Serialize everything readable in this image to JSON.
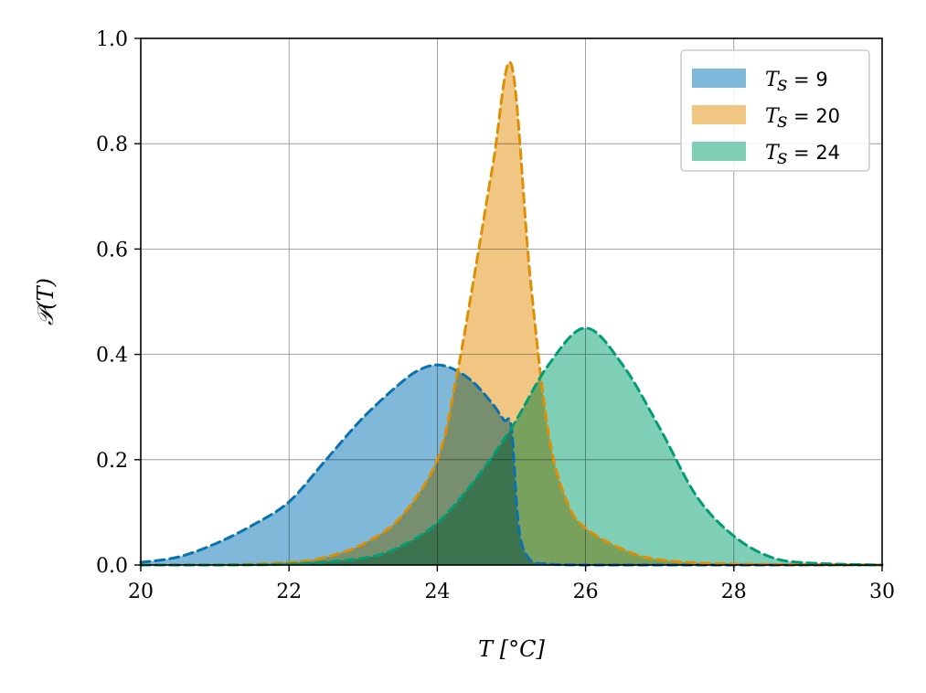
{
  "chart_data": {
    "type": "area",
    "xlabel": "T [°C]",
    "ylabel": "𝒫(T)",
    "xlim": [
      20,
      30
    ],
    "ylim": [
      0,
      1.0
    ],
    "xticks": [
      "20",
      "22",
      "24",
      "26",
      "28",
      "30"
    ],
    "yticks": [
      "0.0",
      "0.2",
      "0.4",
      "0.6",
      "0.8",
      "1.0"
    ],
    "grid": true,
    "legend_position": "top-right",
    "series": [
      {
        "name": "T_s = 9",
        "legend_symbol": "T",
        "legend_sub": "s",
        "legend_value": " = 9",
        "fill_color": "#7fb8d9",
        "line_color": "#0a72b0",
        "x": [
          20.0,
          20.5,
          21.0,
          21.5,
          22.0,
          22.5,
          23.0,
          23.5,
          23.75,
          24.0,
          24.25,
          24.5,
          24.75,
          24.9,
          25.0,
          25.1,
          25.25,
          25.5,
          26.0,
          27.0,
          30.0
        ],
        "y": [
          0.005,
          0.015,
          0.04,
          0.075,
          0.12,
          0.2,
          0.28,
          0.345,
          0.37,
          0.38,
          0.37,
          0.345,
          0.305,
          0.275,
          0.26,
          0.07,
          0.01,
          0.002,
          0.0,
          0.0,
          0.0
        ]
      },
      {
        "name": "T_s = 20",
        "legend_symbol": "T",
        "legend_sub": "s",
        "legend_value": " = 20",
        "fill_color": "#f0c682",
        "line_color": "#de8f05",
        "x": [
          20.0,
          21.0,
          22.0,
          22.5,
          23.0,
          23.5,
          24.0,
          24.25,
          24.5,
          24.75,
          25.0,
          25.25,
          25.5,
          25.75,
          26.0,
          26.5,
          27.0,
          28.0,
          30.0
        ],
        "y": [
          0.0,
          0.0,
          0.005,
          0.015,
          0.04,
          0.09,
          0.2,
          0.35,
          0.55,
          0.76,
          0.95,
          0.55,
          0.25,
          0.12,
          0.07,
          0.03,
          0.01,
          0.002,
          0.0
        ]
      },
      {
        "name": "T_s = 24",
        "legend_symbol": "T",
        "legend_sub": "s",
        "legend_value": " = 24",
        "fill_color": "#7fcfb7",
        "line_color": "#029e73",
        "x": [
          20.0,
          21.0,
          22.0,
          23.0,
          23.5,
          24.0,
          24.5,
          25.0,
          25.5,
          26.0,
          26.5,
          27.0,
          27.5,
          28.0,
          28.5,
          29.0,
          30.0
        ],
        "y": [
          0.0,
          0.0,
          0.002,
          0.013,
          0.035,
          0.08,
          0.16,
          0.26,
          0.38,
          0.45,
          0.38,
          0.26,
          0.13,
          0.055,
          0.015,
          0.004,
          0.0
        ]
      }
    ]
  }
}
